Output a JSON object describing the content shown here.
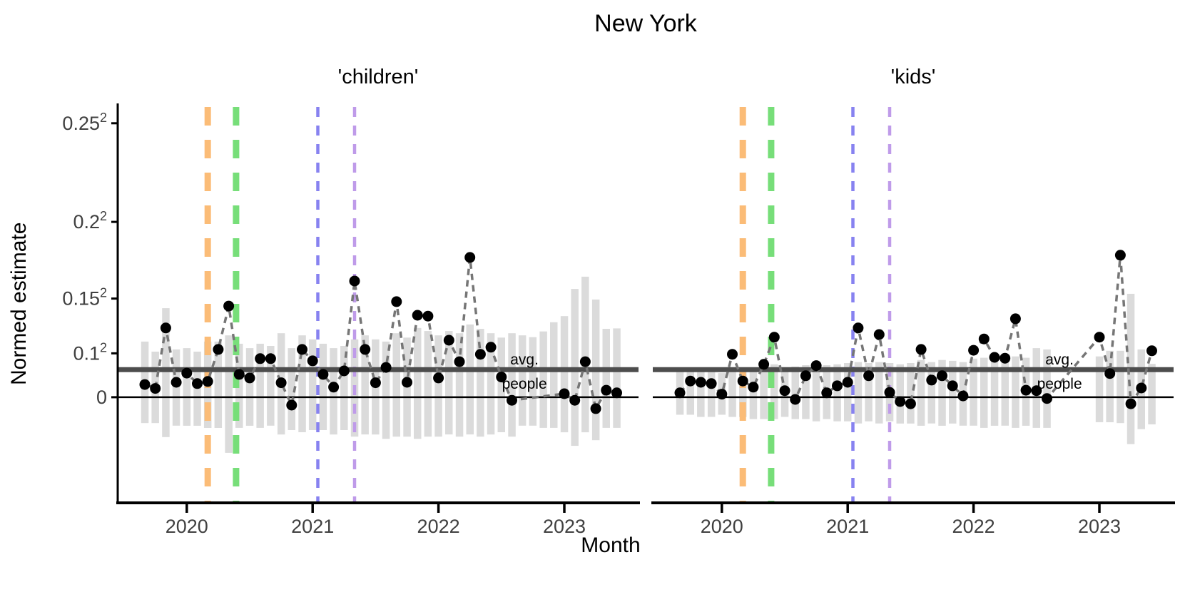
{
  "title": "New York",
  "colors": {
    "bar": "#DBDBDB",
    "avg_line": "#4D4D4D",
    "connector": "#767676",
    "point": "#000000",
    "axis": "#000000",
    "tick_text": "#404040",
    "event_orange": "#FBBC77",
    "event_green": "#77DE79",
    "event_blue": "#8782F0",
    "event_purple": "#BF9BE9"
  },
  "chart_data": {
    "type": "line",
    "title": "New York",
    "x_label": "Month",
    "y_label": "Normed estimate",
    "legend": "none",
    "grid": "off",
    "months": [
      "2019-09",
      "2019-10",
      "2019-11",
      "2019-12",
      "2020-01",
      "2020-02",
      "2020-03",
      "2020-04",
      "2020-05",
      "2020-06",
      "2020-07",
      "2020-08",
      "2020-09",
      "2020-10",
      "2020-11",
      "2020-12",
      "2021-01",
      "2021-02",
      "2021-03",
      "2021-04",
      "2021-05",
      "2021-06",
      "2021-07",
      "2021-08",
      "2021-09",
      "2021-10",
      "2021-11",
      "2021-12",
      "2022-01",
      "2022-02",
      "2022-03",
      "2022-04",
      "2022-05",
      "2022-06",
      "2022-07",
      "2022-08",
      "2022-09",
      "2022-10",
      "2022-11",
      "2022-12",
      "2023-01",
      "2023-02",
      "2023-03",
      "2023-04",
      "2023-05",
      "2023-06"
    ],
    "x_ticks": [
      {
        "label": "2020",
        "month_index": 4
      },
      {
        "label": "2021",
        "month_index": 16
      },
      {
        "label": "2022",
        "month_index": 28
      },
      {
        "label": "2023",
        "month_index": 40
      }
    ],
    "y_ticks": [
      {
        "base": "0.25",
        "exp": "2",
        "value": 0.0625
      },
      {
        "base": "0.2",
        "exp": "2",
        "value": 0.04
      },
      {
        "base": "0.15",
        "exp": "2",
        "value": 0.0225
      },
      {
        "base": "0.1",
        "exp": "2",
        "value": 0.01
      },
      {
        "base": "0",
        "exp": "",
        "value": 0
      }
    ],
    "ylim": [
      -0.0241,
      0.0667
    ],
    "avg_line": {
      "value": 0.0063,
      "label_top": "avg.",
      "label_bottom": "people",
      "label_month_index": 36.2
    },
    "event_lines": [
      {
        "name": "event-line-orange",
        "color": "#FBBC77",
        "month_index": 6.0,
        "width": 9,
        "dash": [
          26,
          20
        ]
      },
      {
        "name": "event-line-green",
        "color": "#77DE79",
        "month_index": 8.7,
        "width": 9,
        "dash": [
          26,
          20
        ]
      },
      {
        "name": "event-line-blue",
        "color": "#8782F0",
        "month_index": 16.5,
        "width": 4.5,
        "dash": [
          14,
          12
        ]
      },
      {
        "name": "event-line-purple",
        "color": "#BF9BE9",
        "month_index": 20.0,
        "width": 4.5,
        "dash": [
          14,
          12
        ]
      }
    ],
    "facets": [
      {
        "label": "'children'",
        "values": [
          0.0029,
          0.002,
          0.0158,
          0.0034,
          0.0055,
          0.0031,
          0.0036,
          0.0109,
          0.0208,
          0.0052,
          0.0044,
          0.0088,
          0.0088,
          0.0033,
          -0.0018,
          0.0109,
          0.0083,
          0.0052,
          0.0023,
          0.006,
          0.0265,
          0.0109,
          0.0033,
          0.0068,
          0.0218,
          0.0034,
          0.0187,
          0.0185,
          0.0044,
          0.013,
          0.0081,
          0.0319,
          0.0098,
          0.0114,
          0.0046,
          -0.0007,
          null,
          null,
          null,
          null,
          0.0008,
          -0.0007,
          0.0081,
          -0.0026,
          0.0016,
          0.001
        ],
        "bars": [
          [
            -0.0059,
            0.0127
          ],
          [
            -0.0059,
            0.0104
          ],
          [
            -0.0091,
            0.0203
          ],
          [
            -0.0065,
            0.0109
          ],
          [
            -0.0065,
            0.0112
          ],
          [
            -0.0065,
            0.0104
          ],
          [
            -0.007,
            0.0127
          ],
          [
            -0.007,
            0.0127
          ],
          [
            -0.0127,
            0.0141
          ],
          [
            -0.007,
            0.0122
          ],
          [
            -0.0065,
            0.0112
          ],
          [
            -0.007,
            0.0122
          ],
          [
            -0.0065,
            0.0117
          ],
          [
            -0.0085,
            0.0146
          ],
          [
            -0.0075,
            0.0112
          ],
          [
            -0.008,
            0.0141
          ],
          [
            -0.0075,
            0.0132
          ],
          [
            -0.0075,
            0.0122
          ],
          [
            -0.0085,
            0.0112
          ],
          [
            -0.0075,
            0.0117
          ],
          [
            -0.009,
            0.0132
          ],
          [
            -0.0085,
            0.0141
          ],
          [
            -0.0085,
            0.0132
          ],
          [
            -0.0095,
            0.0127
          ],
          [
            -0.009,
            0.0146
          ],
          [
            -0.009,
            0.0136
          ],
          [
            -0.0095,
            0.0158
          ],
          [
            -0.009,
            0.0151
          ],
          [
            -0.009,
            0.0141
          ],
          [
            -0.0085,
            0.0151
          ],
          [
            -0.009,
            0.0146
          ],
          [
            -0.0085,
            0.0166
          ],
          [
            -0.009,
            0.0156
          ],
          [
            -0.0085,
            0.0146
          ],
          [
            -0.008,
            0.0136
          ],
          [
            -0.009,
            0.0146
          ],
          [
            -0.0065,
            0.0141
          ],
          [
            -0.0065,
            0.0137
          ],
          [
            -0.007,
            0.015
          ],
          [
            -0.007,
            0.0171
          ],
          [
            -0.008,
            0.0185
          ],
          [
            -0.0111,
            0.0247
          ],
          [
            -0.008,
            0.0275
          ],
          [
            -0.0098,
            0.0223
          ],
          [
            -0.007,
            0.0156
          ],
          [
            -0.007,
            0.0157
          ]
        ]
      },
      {
        "label": "'kids'",
        "values": [
          0.001,
          0.0037,
          0.0034,
          0.0031,
          0.0007,
          0.0098,
          0.0037,
          0.0023,
          0.0075,
          0.0137,
          0.0015,
          -0.0005,
          0.0049,
          0.0072,
          0.001,
          0.0026,
          0.0034,
          0.0158,
          0.0049,
          0.0143,
          0.0011,
          -0.001,
          -0.0015,
          0.0109,
          0.0039,
          0.0049,
          0.0026,
          0.0003,
          0.0107,
          0.0133,
          0.0091,
          0.0089,
          0.0179,
          0.0016,
          0.0015,
          -0.0003,
          null,
          null,
          null,
          null,
          0.0137,
          0.0054,
          0.0324,
          -0.0015,
          0.0021,
          0.0106
        ],
        "bars": [
          [
            -0.004,
            0.006
          ],
          [
            -0.004,
            0.0063
          ],
          [
            -0.0045,
            0.0063
          ],
          [
            -0.0045,
            0.006
          ],
          [
            -0.004,
            0.0055
          ],
          [
            -0.0045,
            0.0065
          ],
          [
            -0.0045,
            0.0063
          ],
          [
            -0.005,
            0.0068
          ],
          [
            -0.005,
            0.007
          ],
          [
            -0.005,
            0.0075
          ],
          [
            -0.0045,
            0.0068
          ],
          [
            -0.005,
            0.007
          ],
          [
            -0.005,
            0.0073
          ],
          [
            -0.0055,
            0.0078
          ],
          [
            -0.005,
            0.0073
          ],
          [
            -0.0055,
            0.0075
          ],
          [
            -0.0055,
            0.0078
          ],
          [
            -0.006,
            0.008
          ],
          [
            -0.0055,
            0.0078
          ],
          [
            -0.006,
            0.008
          ],
          [
            -0.0055,
            0.0078
          ],
          [
            -0.006,
            0.0075
          ],
          [
            -0.006,
            0.0078
          ],
          [
            -0.0065,
            0.0085
          ],
          [
            -0.006,
            0.008
          ],
          [
            -0.0065,
            0.0085
          ],
          [
            -0.006,
            0.0083
          ],
          [
            -0.0065,
            0.008
          ],
          [
            -0.0065,
            0.0088
          ],
          [
            -0.007,
            0.009
          ],
          [
            -0.0065,
            0.0085
          ],
          [
            -0.0065,
            0.0088
          ],
          [
            -0.007,
            0.0093
          ],
          [
            -0.0065,
            0.009
          ],
          [
            -0.007,
            0.0112
          ],
          [
            -0.007,
            0.0109
          ],
          null,
          null,
          null,
          null,
          [
            -0.0057,
            0.0093
          ],
          [
            -0.0057,
            0.0106
          ],
          [
            -0.0059,
            0.0106
          ],
          [
            -0.0107,
            0.0236
          ],
          [
            -0.0073,
            0.0109
          ],
          [
            -0.0062,
            0.0076
          ]
        ]
      }
    ]
  }
}
